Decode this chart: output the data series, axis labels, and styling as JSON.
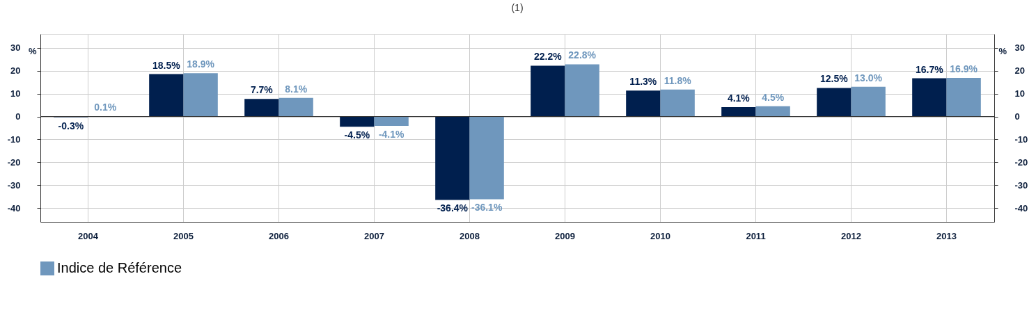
{
  "chart_data": {
    "type": "bar",
    "categories": [
      "2004",
      "2005",
      "2006",
      "2007",
      "2008",
      "2009",
      "2010",
      "2011",
      "2012",
      "2013"
    ],
    "series": [
      {
        "color": "#001f4e",
        "values": [
          -0.3,
          18.5,
          7.7,
          -4.5,
          -36.4,
          22.2,
          11.3,
          4.1,
          12.5,
          16.7
        ],
        "value_labels": [
          "-0.3%",
          "18.5%",
          "7.7%",
          "-4.5%",
          "-36.4%",
          "22.2%",
          "11.3%",
          "4.1%",
          "12.5%",
          "16.7%"
        ]
      },
      {
        "name": "Indice de Référence",
        "color": "#6f97bd",
        "values": [
          0.1,
          18.9,
          8.1,
          -4.1,
          -36.1,
          22.8,
          11.8,
          4.5,
          13.0,
          16.9
        ],
        "value_labels": [
          "0.1%",
          "18.9%",
          "8.1%",
          "-4.1%",
          "-36.1%",
          "22.8%",
          "11.8%",
          "4.5%",
          "13.0%",
          "16.9%"
        ]
      }
    ],
    "ylabel": "%",
    "y2label": "%",
    "ylim": [
      -46,
      36
    ],
    "yticks": [
      -40,
      -30,
      -20,
      -10,
      0,
      10,
      20,
      30
    ],
    "y2lim": [
      -46,
      36
    ],
    "y2ticks": [
      -40,
      -30,
      -20,
      -10,
      0,
      10,
      20,
      30
    ],
    "grid": true,
    "legend": "bottom",
    "annotations": [
      "(1)"
    ]
  }
}
